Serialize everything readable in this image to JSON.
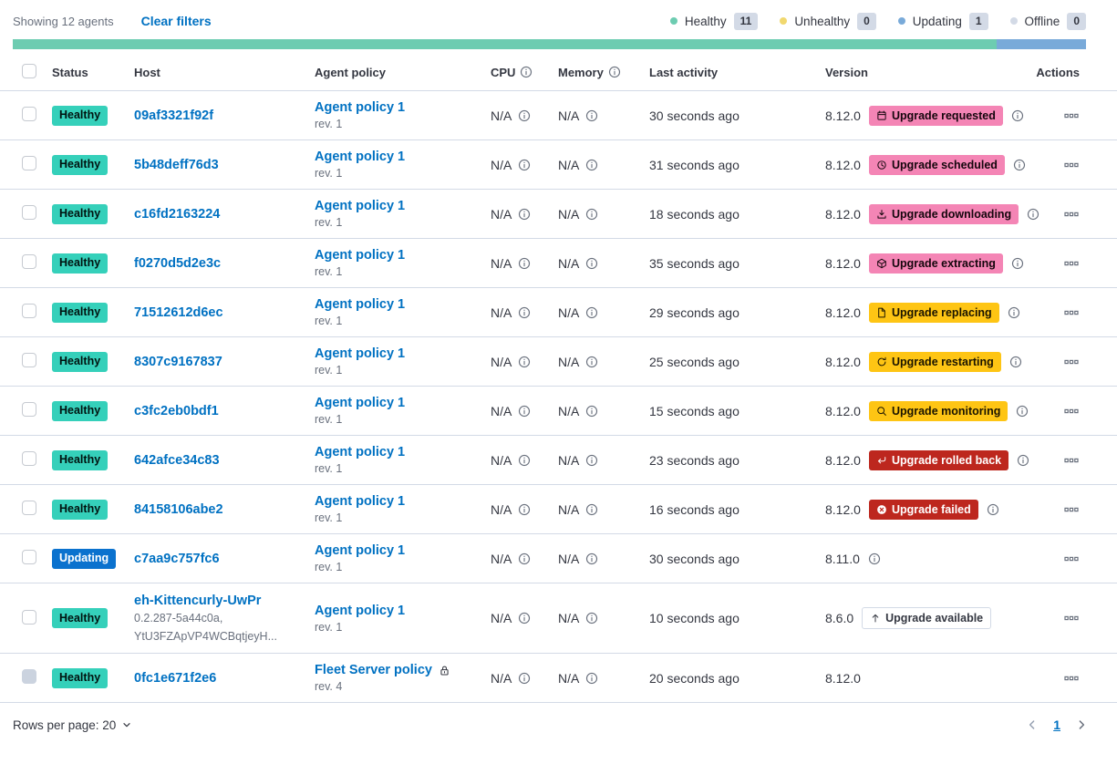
{
  "toolbar": {
    "showing_text": "Showing 12 agents",
    "clear_filters_label": "Clear filters",
    "legend": [
      {
        "label": "Healthy",
        "count": "11",
        "color": "#6DCCB1"
      },
      {
        "label": "Unhealthy",
        "count": "0",
        "color": "#F1D86F"
      },
      {
        "label": "Updating",
        "count": "1",
        "color": "#79AAD9"
      },
      {
        "label": "Offline",
        "count": "0",
        "color": "#D3DAE6"
      }
    ]
  },
  "health_bar": {
    "segments": [
      {
        "status": "healthy",
        "color": "#6DCCB1",
        "percent": 91.66
      },
      {
        "status": "updating",
        "color": "#79AAD9",
        "percent": 8.34
      }
    ]
  },
  "table": {
    "columns": [
      {
        "label": "Status"
      },
      {
        "label": "Host"
      },
      {
        "label": "Agent policy"
      },
      {
        "label": "CPU",
        "info": true
      },
      {
        "label": "Memory",
        "info": true
      },
      {
        "label": "Last activity"
      },
      {
        "label": "Version"
      },
      {
        "label": "Actions",
        "align": "right"
      }
    ],
    "rows": [
      {
        "status": "Healthy",
        "host": "09af3321f92f",
        "host_sub": null,
        "policy": "Agent policy 1",
        "policy_rev": "rev. 1",
        "policy_locked": false,
        "cpu": "N/A",
        "memory": "N/A",
        "last_activity": "30 seconds ago",
        "version": "8.12.0",
        "upgrade": {
          "label": "Upgrade requested",
          "icon": "calendar",
          "style": "pink"
        },
        "version_info": true,
        "checkbox_disabled": false
      },
      {
        "status": "Healthy",
        "host": "5b48deff76d3",
        "host_sub": null,
        "policy": "Agent policy 1",
        "policy_rev": "rev. 1",
        "policy_locked": false,
        "cpu": "N/A",
        "memory": "N/A",
        "last_activity": "31 seconds ago",
        "version": "8.12.0",
        "upgrade": {
          "label": "Upgrade scheduled",
          "icon": "clock",
          "style": "pink"
        },
        "version_info": true,
        "checkbox_disabled": false
      },
      {
        "status": "Healthy",
        "host": "c16fd2163224",
        "host_sub": null,
        "policy": "Agent policy 1",
        "policy_rev": "rev. 1",
        "policy_locked": false,
        "cpu": "N/A",
        "memory": "N/A",
        "last_activity": "18 seconds ago",
        "version": "8.12.0",
        "upgrade": {
          "label": "Upgrade downloading",
          "icon": "download",
          "style": "pink"
        },
        "version_info": true,
        "checkbox_disabled": false
      },
      {
        "status": "Healthy",
        "host": "f0270d5d2e3c",
        "host_sub": null,
        "policy": "Agent policy 1",
        "policy_rev": "rev. 1",
        "policy_locked": false,
        "cpu": "N/A",
        "memory": "N/A",
        "last_activity": "35 seconds ago",
        "version": "8.12.0",
        "upgrade": {
          "label": "Upgrade extracting",
          "icon": "package",
          "style": "pink"
        },
        "version_info": true,
        "checkbox_disabled": false
      },
      {
        "status": "Healthy",
        "host": "71512612d6ec",
        "host_sub": null,
        "policy": "Agent policy 1",
        "policy_rev": "rev. 1",
        "policy_locked": false,
        "cpu": "N/A",
        "memory": "N/A",
        "last_activity": "29 seconds ago",
        "version": "8.12.0",
        "upgrade": {
          "label": "Upgrade replacing",
          "icon": "document",
          "style": "yellow"
        },
        "version_info": true,
        "checkbox_disabled": false
      },
      {
        "status": "Healthy",
        "host": "8307c9167837",
        "host_sub": null,
        "policy": "Agent policy 1",
        "policy_rev": "rev. 1",
        "policy_locked": false,
        "cpu": "N/A",
        "memory": "N/A",
        "last_activity": "25 seconds ago",
        "version": "8.12.0",
        "upgrade": {
          "label": "Upgrade restarting",
          "icon": "refresh",
          "style": "yellow"
        },
        "version_info": true,
        "checkbox_disabled": false
      },
      {
        "status": "Healthy",
        "host": "c3fc2eb0bdf1",
        "host_sub": null,
        "policy": "Agent policy 1",
        "policy_rev": "rev. 1",
        "policy_locked": false,
        "cpu": "N/A",
        "memory": "N/A",
        "last_activity": "15 seconds ago",
        "version": "8.12.0",
        "upgrade": {
          "label": "Upgrade monitoring",
          "icon": "inspect",
          "style": "yellow"
        },
        "version_info": true,
        "checkbox_disabled": false
      },
      {
        "status": "Healthy",
        "host": "642afce34c83",
        "host_sub": null,
        "policy": "Agent policy 1",
        "policy_rev": "rev. 1",
        "policy_locked": false,
        "cpu": "N/A",
        "memory": "N/A",
        "last_activity": "23 seconds ago",
        "version": "8.12.0",
        "upgrade": {
          "label": "Upgrade rolled back",
          "icon": "return",
          "style": "red"
        },
        "version_info": true,
        "checkbox_disabled": false
      },
      {
        "status": "Healthy",
        "host": "84158106abe2",
        "host_sub": null,
        "policy": "Agent policy 1",
        "policy_rev": "rev. 1",
        "policy_locked": false,
        "cpu": "N/A",
        "memory": "N/A",
        "last_activity": "16 seconds ago",
        "version": "8.12.0",
        "upgrade": {
          "label": "Upgrade failed",
          "icon": "error",
          "style": "red"
        },
        "version_info": true,
        "checkbox_disabled": false
      },
      {
        "status": "Updating",
        "host": "c7aa9c757fc6",
        "host_sub": null,
        "policy": "Agent policy 1",
        "policy_rev": "rev. 1",
        "policy_locked": false,
        "cpu": "N/A",
        "memory": "N/A",
        "last_activity": "30 seconds ago",
        "version": "8.11.0",
        "upgrade": null,
        "version_info": true,
        "checkbox_disabled": false
      },
      {
        "status": "Healthy",
        "host": "eh-Kittencurly-UwPr",
        "host_sub": [
          "0.2.287-5a44c0a,",
          "YtU3FZApVP4WCBqtjeyH..."
        ],
        "policy": "Agent policy 1",
        "policy_rev": "rev. 1",
        "policy_locked": false,
        "cpu": "N/A",
        "memory": "N/A",
        "last_activity": "10 seconds ago",
        "version": "8.6.0",
        "upgrade": {
          "label": "Upgrade available",
          "icon": "uparrow",
          "style": "hollow"
        },
        "version_info": false,
        "checkbox_disabled": false
      },
      {
        "status": "Healthy",
        "host": "0fc1e671f2e6",
        "host_sub": null,
        "policy": "Fleet Server policy",
        "policy_rev": "rev. 4",
        "policy_locked": true,
        "cpu": "N/A",
        "memory": "N/A",
        "last_activity": "20 seconds ago",
        "version": "8.12.0",
        "upgrade": null,
        "version_info": false,
        "checkbox_disabled": true
      }
    ]
  },
  "footer": {
    "rows_per_page_label": "Rows per page: 20",
    "page": "1"
  },
  "colors": {
    "healthy_badge": "#35D0BA",
    "updating_badge": "#0B72CE",
    "upgrade_pink": "#F485B5",
    "upgrade_yellow": "#FEC514",
    "upgrade_red": "#BD271E",
    "link_blue": "#0071C2",
    "healthbar_green": "#6DCCB1",
    "healthbar_blue": "#79AAD9"
  }
}
